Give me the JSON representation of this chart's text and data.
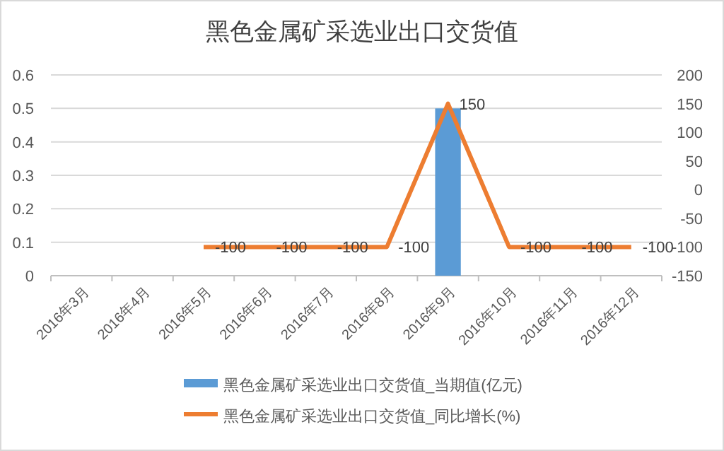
{
  "chart_data": {
    "type": "bar",
    "title": "黑色金属矿采选业出口交货值",
    "categories": [
      "2016年3月",
      "2016年4月",
      "2016年5月",
      "2016年6月",
      "2016年7月",
      "2016年8月",
      "2016年9月",
      "2016年10月",
      "2016年11月",
      "2016年12月"
    ],
    "series": [
      {
        "name": "黑色金属矿采选业出口交货值_当期值(亿元)",
        "color": "#5b9bd5",
        "values": [
          null,
          null,
          null,
          null,
          null,
          null,
          0.5,
          null,
          null,
          null
        ]
      },
      {
        "name": "黑色金属矿采选业出口交货值_同比增长(%)",
        "type": "line",
        "axis": "y2",
        "color": "#ed7d31",
        "values": [
          null,
          null,
          -100,
          -100,
          -100,
          -100,
          150,
          -100,
          -100,
          -100
        ],
        "value_labels": [
          null,
          null,
          "-100",
          "-100",
          "-100",
          "-100",
          "150",
          "-100",
          "-100",
          "-100"
        ]
      }
    ],
    "ylim": [
      0,
      0.6
    ],
    "yticks": [
      0,
      0.1,
      0.2,
      0.3,
      0.4,
      0.5,
      0.6
    ],
    "y2lim": [
      -150,
      200
    ],
    "y2ticks": [
      -150,
      -100,
      -50,
      0,
      50,
      100,
      150,
      200
    ],
    "grid": "y",
    "legend": "bottom",
    "marker": "none",
    "line_style": "solid"
  }
}
